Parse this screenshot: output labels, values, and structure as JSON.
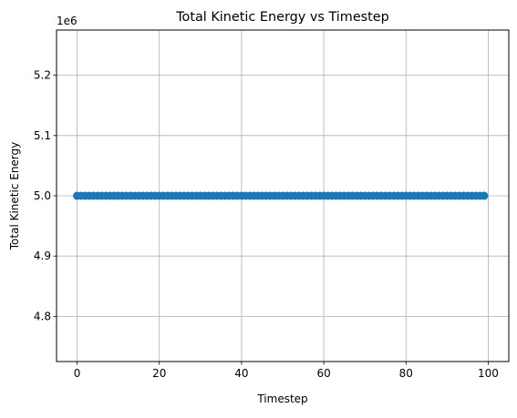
{
  "chart_data": {
    "type": "scatter",
    "title": "Total Kinetic Energy vs Timestep",
    "xlabel": "Timestep",
    "ylabel": "Total Kinetic Energy",
    "y_offset_label": "1e6",
    "xlim": [
      -5,
      105
    ],
    "ylim": [
      4.725,
      5.275
    ],
    "y_scale_factor": 1000000,
    "x_ticks": [
      0,
      20,
      40,
      60,
      80,
      100
    ],
    "x_tick_labels": [
      "0",
      "20",
      "40",
      "60",
      "80",
      "100"
    ],
    "y_ticks": [
      4.8,
      4.9,
      5.0,
      5.1,
      5.2
    ],
    "y_tick_labels": [
      "4.8",
      "4.9",
      "5.0",
      "5.1",
      "5.2"
    ],
    "grid": true,
    "series": [
      {
        "x_start": 0,
        "x_end": 99,
        "x_step": 1,
        "y_constant": 5000000,
        "color": "#1f77b4",
        "marker": "circle",
        "line": true
      }
    ]
  }
}
